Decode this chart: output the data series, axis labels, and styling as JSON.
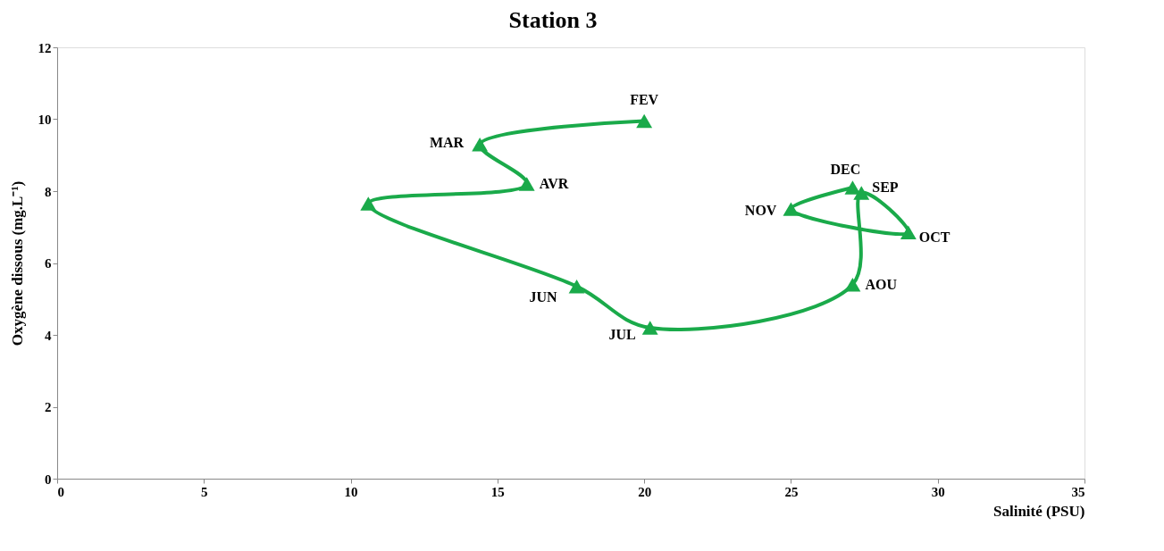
{
  "chart_data": {
    "type": "line",
    "title": "Station 3",
    "xlabel": "Salinité (PSU)",
    "ylabel": "Oxygène dissous (mg.L⁻¹)",
    "xlim": [
      0,
      35
    ],
    "xticks": [
      0,
      5,
      10,
      15,
      20,
      25,
      30,
      35
    ],
    "ylim": [
      0,
      12
    ],
    "yticks": [
      0,
      2,
      4,
      6,
      8,
      10,
      12
    ],
    "grid": false,
    "marker": "triangle",
    "line_style": "solid",
    "series": [
      {
        "color": "#1aaa4a",
        "x": [
          20.0,
          14.4,
          16.0,
          10.6,
          17.7,
          20.2,
          27.1,
          27.4,
          29.0,
          25.0,
          27.1
        ],
        "values": [
          9.95,
          9.3,
          8.2,
          7.65,
          5.35,
          4.2,
          5.4,
          7.95,
          6.85,
          7.5,
          8.1
        ]
      }
    ],
    "annotations": [
      {
        "text": "FEV",
        "x": 20.0,
        "y": 9.95
      },
      {
        "text": "MAR",
        "x": 14.4,
        "y": 9.3
      },
      {
        "text": "AVR",
        "x": 16.0,
        "y": 8.2
      },
      {
        "text": "JUN",
        "x": 17.7,
        "y": 5.35
      },
      {
        "text": "JUL",
        "x": 20.2,
        "y": 4.2
      },
      {
        "text": "AOU",
        "x": 27.1,
        "y": 5.4
      },
      {
        "text": "SEP",
        "x": 27.4,
        "y": 7.95
      },
      {
        "text": "OCT",
        "x": 29.0,
        "y": 6.85
      },
      {
        "text": "NOV",
        "x": 25.0,
        "y": 7.5
      },
      {
        "text": "DEC",
        "x": 27.1,
        "y": 8.1
      }
    ]
  }
}
